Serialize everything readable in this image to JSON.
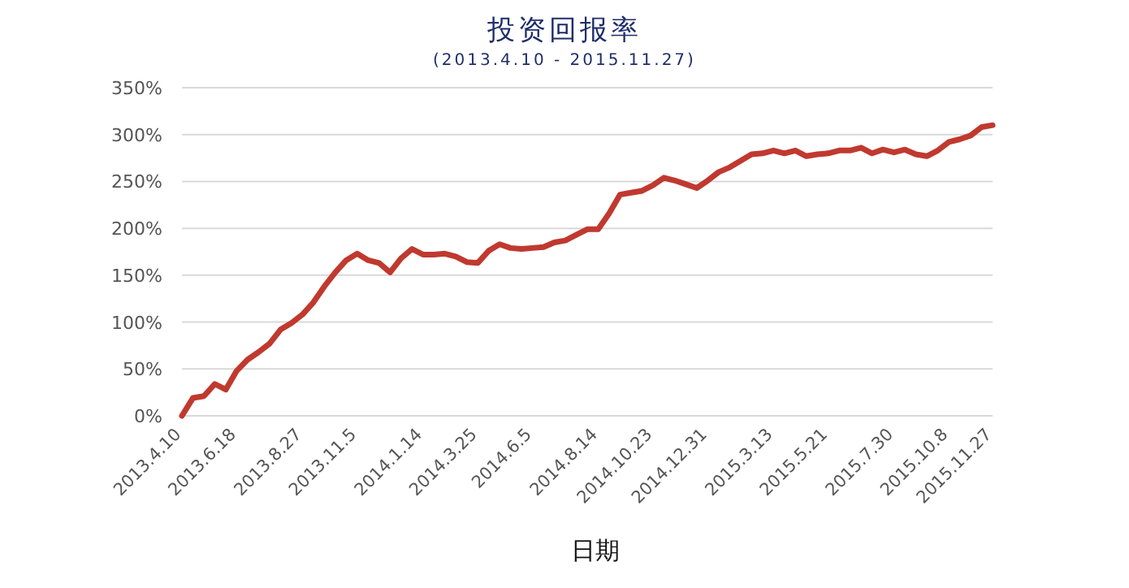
{
  "chart_data": {
    "type": "line",
    "title": "投资回报率",
    "subtitle": "(2013.4.10 - 2015.11.27)",
    "xlabel": "日期",
    "categories": [
      "2013.4.10",
      null,
      null,
      null,
      null,
      "2013.6.18",
      null,
      null,
      null,
      null,
      null,
      "2013.8.27",
      null,
      null,
      null,
      null,
      "2013.11.5",
      null,
      null,
      null,
      null,
      null,
      "2014.1.14",
      null,
      null,
      null,
      null,
      "2014.3.25",
      null,
      null,
      null,
      null,
      "2014.6.5",
      null,
      null,
      null,
      null,
      null,
      "2014.8.14",
      null,
      null,
      null,
      null,
      "2014.10.23",
      null,
      null,
      null,
      null,
      "2014.12.31",
      null,
      null,
      null,
      null,
      null,
      "2015.3.13",
      null,
      null,
      null,
      null,
      "2015.5.21",
      null,
      null,
      null,
      null,
      null,
      "2015.7.30",
      null,
      null,
      null,
      null,
      "2015.10.8",
      null,
      null,
      null,
      "2015.11.27"
    ],
    "series": [
      {
        "color": "#c0392f",
        "values": [
          0,
          19,
          21,
          34,
          28,
          48,
          60,
          68,
          77,
          92,
          99,
          108,
          121,
          138,
          153,
          166,
          173,
          166,
          163,
          153,
          168,
          178,
          172,
          172,
          173,
          170,
          164,
          163,
          176,
          183,
          179,
          178,
          179,
          180,
          185,
          187,
          193,
          199,
          199,
          216,
          236,
          238,
          240,
          246,
          254,
          251,
          247,
          243,
          251,
          260,
          265,
          272,
          279,
          280,
          283,
          280,
          283,
          277,
          279,
          280,
          283,
          283,
          286,
          280,
          284,
          281,
          284,
          279,
          277,
          283,
          292,
          295,
          299,
          308,
          310
        ]
      }
    ],
    "ylim": [
      0,
      350
    ],
    "yticks": [
      {
        "value": 0,
        "label": "0%"
      },
      {
        "value": 50,
        "label": "50%"
      },
      {
        "value": 100,
        "label": "100%"
      },
      {
        "value": 150,
        "label": "150%"
      },
      {
        "value": 200,
        "label": "200%"
      },
      {
        "value": 250,
        "label": "250%"
      },
      {
        "value": 300,
        "label": "300%"
      },
      {
        "value": 350,
        "label": "350%"
      }
    ],
    "grid": "y",
    "line_style": "solid"
  }
}
